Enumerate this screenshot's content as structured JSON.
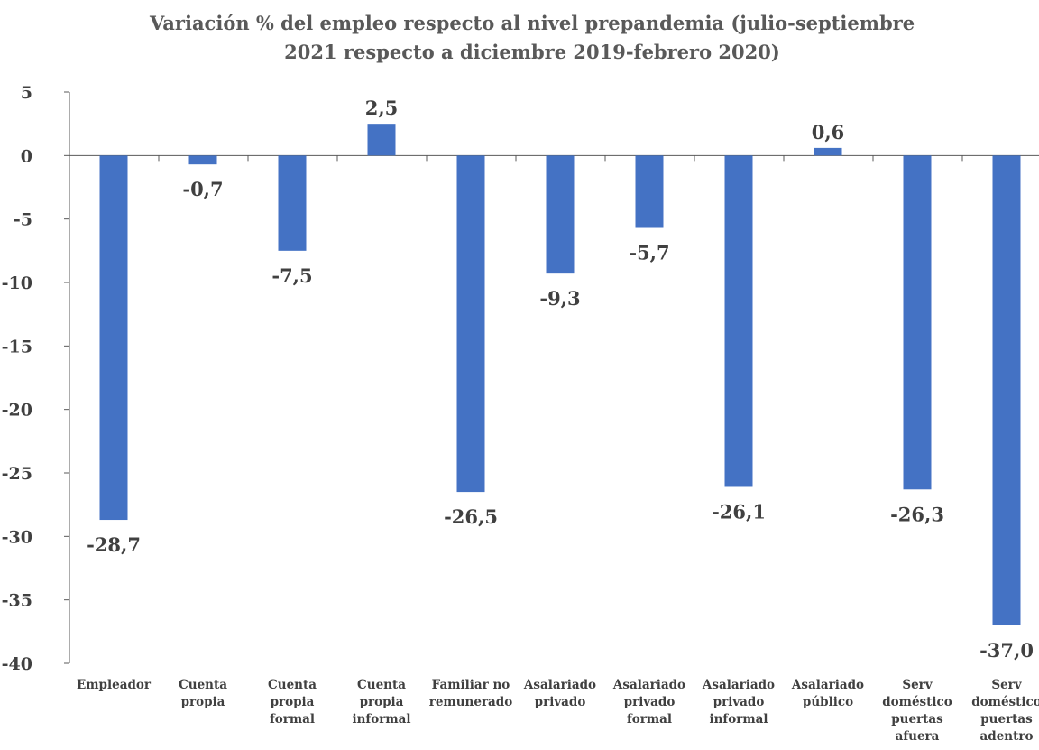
{
  "chart_data": {
    "type": "bar",
    "title_line1": "Variación % del empleo respecto al nivel prepandemia (julio-septiembre",
    "title_line2": "2021 respecto a diciembre 2019-febrero 2020)",
    "categories": [
      [
        "Empleador"
      ],
      [
        "Cuenta",
        "propia"
      ],
      [
        "Cuenta",
        "propia",
        "formal"
      ],
      [
        "Cuenta",
        "propia",
        "informal"
      ],
      [
        "Familiar no",
        "remunerado"
      ],
      [
        "Asalariado",
        "privado"
      ],
      [
        "Asalariado",
        "privado",
        "formal"
      ],
      [
        "Asalariado",
        "privado",
        "informal"
      ],
      [
        "Asalariado",
        "público"
      ],
      [
        "Serv",
        "doméstico",
        "puertas",
        "afuera"
      ],
      [
        "Serv",
        "doméstico",
        "puertas",
        "adentro"
      ]
    ],
    "values": [
      -28.7,
      -0.7,
      -7.5,
      2.5,
      -26.5,
      -9.3,
      -5.7,
      -26.1,
      0.6,
      -26.3,
      -37.0
    ],
    "data_labels": [
      "-28,7",
      "-0,7",
      "-7,5",
      "2,5",
      "-26,5",
      "-9,3",
      "-5,7",
      "-26,1",
      "0,6",
      "-26,3",
      "-37,0"
    ],
    "y_ticks": [
      5,
      0,
      -5,
      -10,
      -15,
      -20,
      -25,
      -30,
      -35,
      -40
    ],
    "ylim": [
      -40,
      5
    ],
    "grid": false,
    "colors": {
      "bar": "#4472C4",
      "text": "#404040",
      "axis": "#595959",
      "title": "#595959"
    }
  }
}
